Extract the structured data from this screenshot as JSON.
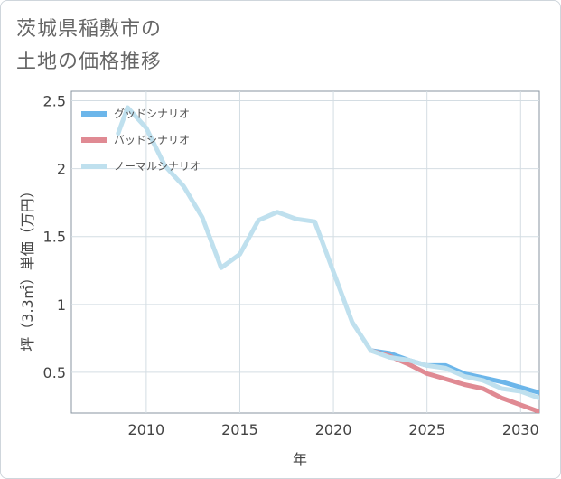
{
  "title_lines": [
    "茨城県稲敷市の",
    "土地の価格推移"
  ],
  "chart_data": {
    "type": "line",
    "xlabel": "年",
    "ylabel": "坪（3.3㎡）単価（万円）",
    "xlim": [
      2006,
      2031
    ],
    "ylim": [
      0.2,
      2.57
    ],
    "x_ticks": [
      2010,
      2015,
      2020,
      2025,
      2030
    ],
    "x_tick_labels": [
      "2010",
      "2015",
      "2020",
      "2025",
      "2030"
    ],
    "y_ticks": [
      0.5,
      1,
      1.5,
      2,
      2.5
    ],
    "y_tick_labels": [
      "0.5",
      "1",
      "1.5",
      "2",
      "2.5"
    ],
    "grid": true,
    "legend_position": "top-left",
    "series": [
      {
        "name": "グッドシナリオ",
        "color": "#6cb6ea",
        "x": [
          2022,
          2023,
          2024,
          2025,
          2026,
          2027,
          2028,
          2029,
          2030,
          2031
        ],
        "values": [
          0.66,
          0.64,
          0.59,
          0.55,
          0.55,
          0.49,
          0.46,
          0.43,
          0.39,
          0.35
        ]
      },
      {
        "name": "バッドシナリオ",
        "color": "#e08a93",
        "x": [
          2022,
          2023,
          2024,
          2025,
          2026,
          2027,
          2028,
          2029,
          2030,
          2031
        ],
        "values": [
          0.66,
          0.62,
          0.56,
          0.49,
          0.45,
          0.41,
          0.38,
          0.31,
          0.26,
          0.21
        ]
      },
      {
        "name": "ノーマルシナリオ",
        "color": "#bfe0ee",
        "x": [
          2008.5,
          2009,
          2010,
          2011,
          2012,
          2013,
          2014,
          2015,
          2016,
          2017,
          2018,
          2019,
          2020,
          2021,
          2022,
          2023,
          2024,
          2025,
          2026,
          2027,
          2028,
          2029,
          2030,
          2031
        ],
        "values": [
          2.26,
          2.45,
          2.3,
          2.02,
          1.87,
          1.64,
          1.27,
          1.37,
          1.62,
          1.68,
          1.63,
          1.61,
          1.24,
          0.87,
          0.66,
          0.61,
          0.59,
          0.55,
          0.53,
          0.47,
          0.44,
          0.38,
          0.36,
          0.31
        ]
      }
    ]
  }
}
